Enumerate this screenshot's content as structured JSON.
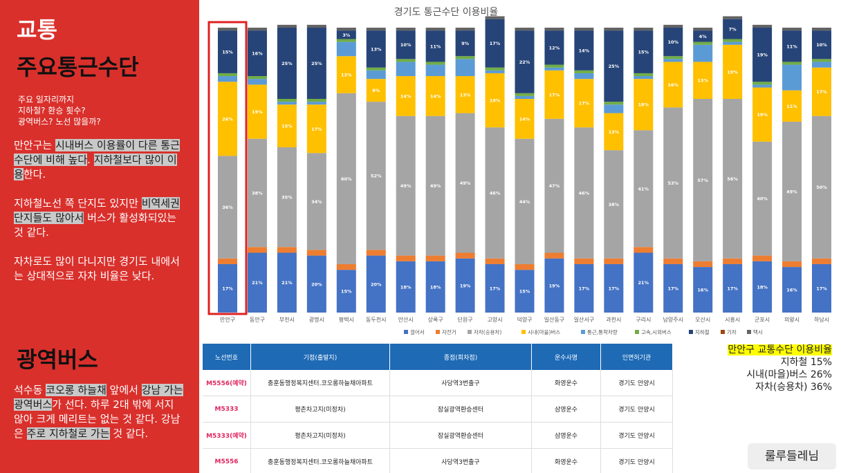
{
  "sidebar": {
    "title": "교통",
    "subtitle": "주요통근수단",
    "questions": [
      "주요 일자리까지",
      "지하철? 환승 횟수?",
      "광역버스? 노선 많을까?"
    ],
    "paragraphs": [
      [
        {
          "text": "만안구는 ",
          "highlight": false
        },
        {
          "text": "시내버스 이용률이 다른 통근 수단에 비해 높다",
          "highlight": true
        },
        {
          "text": ". ",
          "highlight": false
        },
        {
          "text": "지하철보다 많이 이용",
          "highlight": true
        },
        {
          "text": "한다.",
          "highlight": false
        }
      ],
      [
        {
          "text": "지하철노선 쪽 단지도 있지만 ",
          "highlight": false
        },
        {
          "text": "비역세권 단지들도 많아서",
          "highlight": true
        },
        {
          "text": " 버스가 활성화되있는 것 같다.",
          "highlight": false
        }
      ],
      [
        {
          "text": "자차로도 많이 다니지만 경기도 내에서는 상대적으로 자차 비율은 낮다.",
          "highlight": false
        }
      ]
    ],
    "section_title": "광역버스",
    "section_paragraph": [
      {
        "text": "석수동 ",
        "highlight": false
      },
      {
        "text": "코오롱 하늘채",
        "highlight": true
      },
      {
        "text": " 앞에서 ",
        "highlight": false
      },
      {
        "text": "강남 가는 광역버스",
        "highlight": true
      },
      {
        "text": "가 선다. 하루 2대 밖에 서지 않아 크게 메리트는 없는 것 같다. 강남은 ",
        "highlight": false
      },
      {
        "text": "주로 지하철로 가는",
        "highlight": true
      },
      {
        "text": " 것 같다.",
        "highlight": false
      }
    ]
  },
  "chart_data": {
    "type": "stacked_bar",
    "title": "경기도 통근수단 이용비율",
    "ylim": [
      0,
      100
    ],
    "categories": [
      "만안구",
      "동안구",
      "부천시",
      "광명시",
      "평택시",
      "동두천시",
      "안산시",
      "상록구",
      "단원구",
      "고양시",
      "덕양구",
      "일산동구",
      "일산서구",
      "과천시",
      "구리시",
      "남양주시",
      "오산시",
      "시흥시",
      "군포시",
      "의왕시",
      "하남시"
    ],
    "series": [
      {
        "name": "걸어서",
        "color": "#4472c4",
        "values": [
          17,
          21,
          21,
          20,
          15,
          20,
          18,
          18,
          19,
          17,
          15,
          19,
          17,
          17,
          21,
          17,
          16,
          17,
          18,
          16,
          17
        ],
        "value_labels": [
          "17%",
          "21%",
          "21%",
          "20%",
          "15%",
          "20%",
          "18%",
          "18%",
          "19%",
          "17%",
          "15%",
          "19%",
          "17%",
          "17%",
          "21%",
          "17%",
          "16%",
          "17%",
          "18%",
          "16%",
          "17%"
        ]
      },
      {
        "name": "자전거",
        "color": "#ed7d31",
        "values": [
          2,
          2,
          2,
          2,
          2,
          2,
          2,
          2,
          2,
          2,
          2,
          2,
          2,
          2,
          2,
          2,
          2,
          2,
          2,
          2,
          2
        ]
      },
      {
        "name": "자차(승용차)",
        "color": "#a5a5a5",
        "values": [
          36,
          38,
          35,
          34,
          60,
          52,
          49,
          49,
          49,
          46,
          44,
          47,
          46,
          38,
          41,
          53,
          57,
          56,
          40,
          49,
          50
        ],
        "value_labels": [
          "36%",
          "38%",
          "35%",
          "34%",
          "60%",
          "52%",
          "49%",
          "49%",
          "49%",
          "46%",
          "44%",
          "47%",
          "46%",
          "38%",
          "41%",
          "53%",
          "57%",
          "56%",
          "40%",
          "49%",
          "50%"
        ]
      },
      {
        "name": "시내(마을)버스",
        "color": "#ffc000",
        "values": [
          26,
          19,
          15,
          17,
          13,
          8,
          14,
          14,
          13,
          19,
          14,
          17,
          17,
          13,
          18,
          16,
          13,
          19,
          19,
          11,
          17
        ],
        "value_labels": [
          "26%",
          "19%",
          "15%",
          "17%",
          "13%",
          "8%",
          "14%",
          "14%",
          "13%",
          "19%",
          "14%",
          "17%",
          "17%",
          "13%",
          "18%",
          "16%",
          "13%",
          "19%",
          "19%",
          "11%",
          "17%"
        ]
      },
      {
        "name": "통근,통학차량",
        "color": "#5b9bd5",
        "values": [
          2,
          2,
          1,
          1,
          5,
          3,
          5,
          4,
          6,
          1,
          1,
          1,
          2,
          3,
          1,
          1,
          6,
          1,
          1,
          9,
          2
        ]
      },
      {
        "name": "고속,시외버스",
        "color": "#70ad47",
        "values": [
          1,
          1,
          1,
          1,
          1,
          1,
          1,
          1,
          1,
          1,
          1,
          1,
          1,
          1,
          1,
          1,
          1,
          1,
          1,
          1,
          1
        ]
      },
      {
        "name": "지하철",
        "color": "#264478",
        "values": [
          15,
          16,
          25,
          25,
          3,
          13,
          10,
          11,
          9,
          17,
          22,
          12,
          14,
          25,
          15,
          10,
          4,
          7,
          19,
          11,
          10
        ],
        "value_labels": [
          "15%",
          "16%",
          "25%",
          "25%",
          "3%",
          "13%",
          "10%",
          "11%",
          "9%",
          "17%",
          "22%",
          "12%",
          "14%",
          "25%",
          "15%",
          "10%",
          "4%",
          "7%",
          "19%",
          "11%",
          "10%"
        ]
      },
      {
        "name": "기차",
        "color": "#9e480e",
        "values": [
          0,
          0,
          0,
          0,
          0,
          0,
          0,
          0,
          0,
          0,
          0,
          0,
          0,
          0,
          0,
          0,
          0,
          0,
          0,
          0,
          0
        ]
      },
      {
        "name": "택시",
        "color": "#636363",
        "values": [
          1,
          1,
          1,
          1,
          1,
          1,
          1,
          1,
          1,
          1,
          1,
          1,
          1,
          1,
          1,
          1,
          1,
          1,
          1,
          1,
          1
        ]
      }
    ]
  },
  "table": {
    "headers": [
      "노선번호",
      "기점(출발지)",
      "종점(회차점)",
      "운수사명",
      "인면허기관"
    ],
    "rows": [
      [
        "M5556(예약)",
        "충훈동행정복지센터.코오롱하늘채아파트",
        "사당역3번출구",
        "화영운수",
        "경기도 안양시"
      ],
      [
        "M5333",
        "평촌차고지(미정차)",
        "잠실광역환승센터",
        "삼영운수",
        "경기도 안양시"
      ],
      [
        "M5333(예약)",
        "평촌차고지(미정차)",
        "잠실광역환승센터",
        "삼영운수",
        "경기도 안양시"
      ],
      [
        "M5556",
        "충훈동행정복지센터.코오롱하늘채아파트",
        "사당역3번출구",
        "화영운수",
        "경기도 안양시"
      ]
    ]
  },
  "note": {
    "title": "만안구 교통수단 이용비율",
    "lines": [
      "지하철 15%",
      "시내(마을)버스 26%",
      "자차(승용차) 36%"
    ]
  },
  "button": "룰루들레님"
}
